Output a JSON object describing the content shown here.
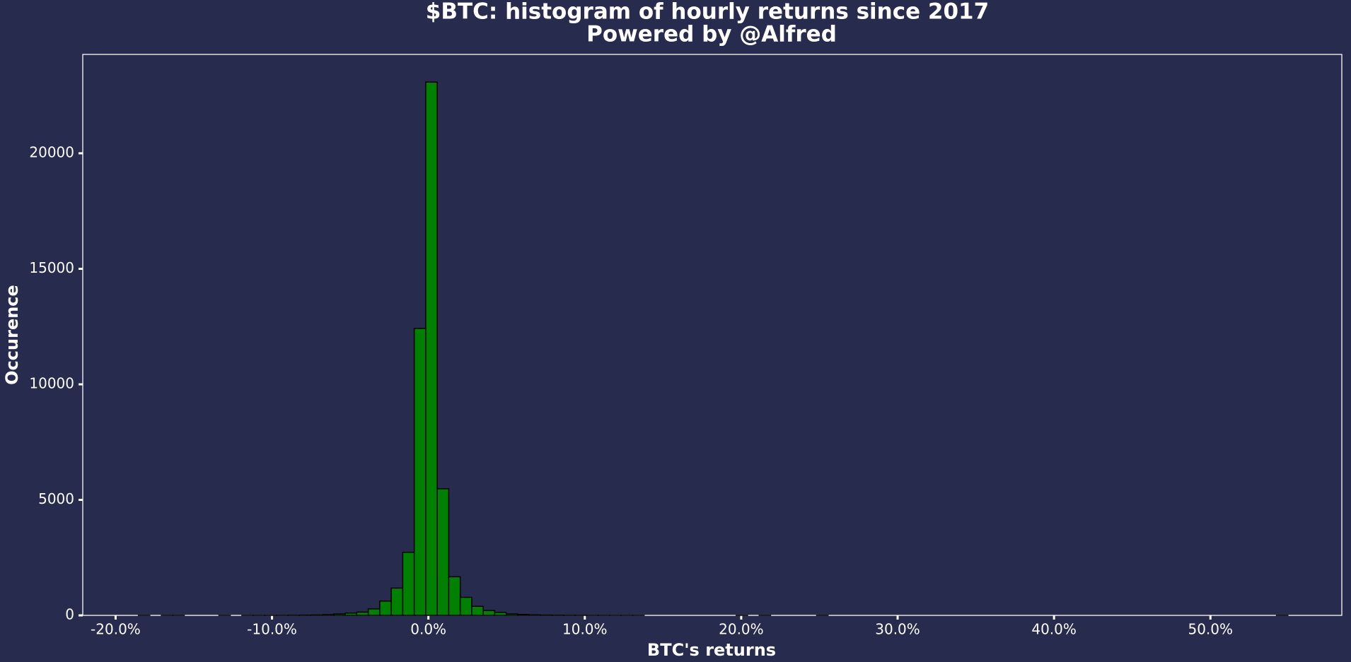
{
  "chart_data": {
    "type": "histogram",
    "title": "$BTC: histogram of hourly returns since 2017",
    "subtitle": "Powered by @Alfred",
    "x_label": "BTC's returns",
    "y_label": "Occurence",
    "color": "#008000",
    "edge_color": "#000000",
    "bins": [
      -18.545,
      -17.81,
      -17.075,
      -16.34,
      -15.605,
      -14.87,
      -14.135,
      -13.4,
      -12.665,
      -11.93,
      -11.195,
      -10.46,
      -9.725,
      -8.99,
      -8.255,
      -7.52,
      -6.785,
      -6.05,
      -5.315,
      -4.58,
      -3.845,
      -3.11,
      -2.375,
      -1.64,
      -0.905,
      -0.17,
      0.565,
      1.3,
      2.035,
      2.77,
      3.505,
      4.24,
      4.975,
      5.71,
      6.445,
      7.18,
      7.915,
      8.65,
      9.385,
      10.12,
      10.855,
      11.59,
      12.325,
      13.06,
      13.795,
      14.53,
      15.265,
      16.0,
      16.735,
      17.47,
      18.205,
      18.94,
      19.675,
      20.41,
      21.145,
      21.88,
      22.615,
      23.35,
      24.085,
      24.82,
      25.555,
      26.29,
      27.025,
      27.76,
      28.495,
      29.23,
      29.965,
      30.7,
      31.435,
      32.17,
      32.905,
      33.64,
      34.375,
      35.11,
      35.845,
      36.58,
      37.315,
      38.05,
      38.785,
      39.52,
      40.255,
      40.99,
      41.725,
      42.46,
      43.195,
      43.93,
      44.665,
      45.4,
      46.135,
      46.87,
      47.605,
      48.34,
      49.075,
      49.81,
      50.545,
      51.28,
      52.015,
      52.75,
      53.485,
      54.22,
      54.955
    ],
    "values": [
      1,
      0,
      1,
      1,
      0,
      0,
      0,
      1,
      0,
      1,
      2,
      2,
      3,
      5,
      8,
      15,
      30,
      60,
      100,
      140,
      280,
      620,
      1180,
      2730,
      12420,
      23080,
      5480,
      1670,
      780,
      390,
      210,
      130,
      60,
      35,
      20,
      10,
      6,
      4,
      3,
      2,
      2,
      1,
      1,
      1,
      0,
      0,
      0,
      0,
      0,
      0,
      0,
      0,
      1,
      0,
      1,
      0,
      0,
      0,
      0,
      1,
      0,
      0,
      0,
      0,
      0,
      0,
      0,
      0,
      0,
      0,
      0,
      0,
      0,
      0,
      0,
      0,
      0,
      0,
      0,
      0,
      0,
      0,
      0,
      0,
      0,
      0,
      0,
      0,
      0,
      0,
      0,
      0,
      0,
      0,
      0,
      0,
      0,
      0,
      0,
      1
    ],
    "xlim": [
      -22.1,
      58.4
    ],
    "ylim": [
      0,
      24280
    ],
    "xticks": [
      {
        "value": -20,
        "label": "-20.0%"
      },
      {
        "value": -10,
        "label": "-10.0%"
      },
      {
        "value": 0,
        "label": "0.0%"
      },
      {
        "value": 10,
        "label": "10.0%"
      },
      {
        "value": 20,
        "label": "20.0%"
      },
      {
        "value": 30,
        "label": "30.0%"
      },
      {
        "value": 40,
        "label": "40.0%"
      },
      {
        "value": 50,
        "label": "50.0%"
      }
    ],
    "yticks": [
      0,
      5000,
      10000,
      15000,
      20000
    ]
  }
}
